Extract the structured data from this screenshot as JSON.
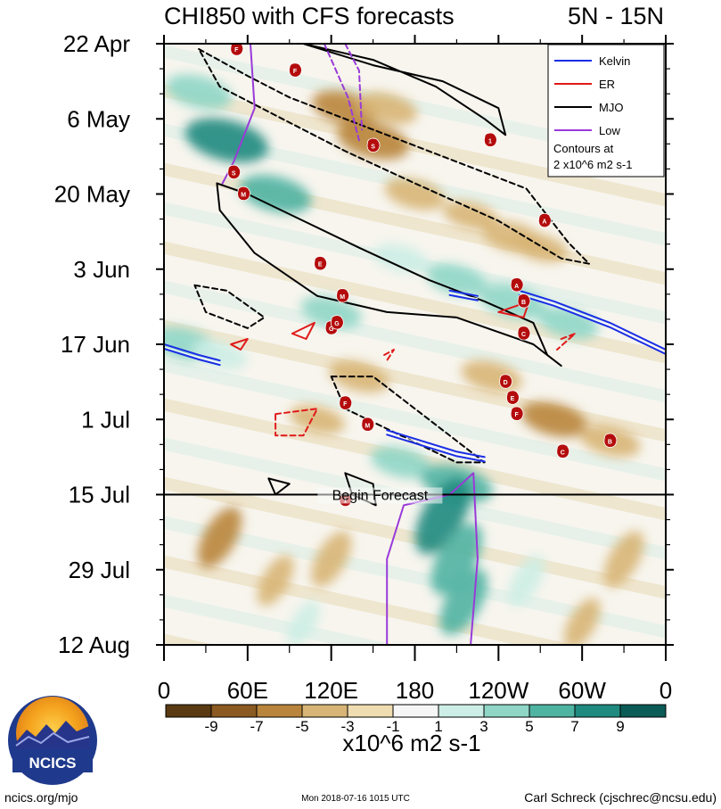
{
  "chart_data": {
    "type": "heatmap",
    "title_left": "CHI850 with CFS forecasts",
    "title_right": "5N - 15N",
    "variable": "CHI850 anomaly (Hovmoller, time vs longitude)",
    "x_tick_labels": [
      "0",
      "60E",
      "120E",
      "180",
      "120W",
      "60W",
      "0"
    ],
    "x_range_deg_east": [
      0,
      360
    ],
    "y_tick_labels": [
      "22 Apr",
      "6 May",
      "20 May",
      "3 Jun",
      "17 Jun",
      "1 Jul",
      "15 Jul",
      "29 Jul",
      "12 Aug"
    ],
    "y_range_days_since_22_Apr": [
      0,
      112
    ],
    "forecast_start_label": "Begin Forecast",
    "forecast_start_day": 84,
    "colorbar": {
      "levels": [
        "-9",
        "-7",
        "-5",
        "-3",
        "-1",
        "1",
        "3",
        "5",
        "7",
        "9"
      ],
      "units": "x10^6 m2 s-1",
      "colors": [
        "#5a3a12",
        "#8b5a20",
        "#b9853c",
        "#d8b576",
        "#efdcb0",
        "#f6f6f6",
        "#cdeee6",
        "#8fd6c6",
        "#4fb3a2",
        "#1f8a80",
        "#0b5c56"
      ]
    },
    "anomaly_blobs": [
      {
        "lon": 25,
        "day": 9,
        "value": 5
      },
      {
        "lon": 45,
        "day": 18,
        "value": 8
      },
      {
        "lon": 80,
        "day": 28,
        "value": 6
      },
      {
        "lon": 130,
        "day": 12,
        "value": -5
      },
      {
        "lon": 150,
        "day": 18,
        "value": -6
      },
      {
        "lon": 160,
        "day": 12,
        "value": -4
      },
      {
        "lon": 180,
        "day": 28,
        "value": -4
      },
      {
        "lon": 220,
        "day": 32,
        "value": -3
      },
      {
        "lon": 250,
        "day": 36,
        "value": -4
      },
      {
        "lon": 270,
        "day": 38,
        "value": -3
      },
      {
        "lon": 250,
        "day": 48,
        "value": 5
      },
      {
        "lon": 290,
        "day": 52,
        "value": 4
      },
      {
        "lon": 210,
        "day": 44,
        "value": 4
      },
      {
        "lon": 170,
        "day": 40,
        "value": 3
      },
      {
        "lon": 120,
        "day": 50,
        "value": 4
      },
      {
        "lon": 15,
        "day": 56,
        "value": 5
      },
      {
        "lon": 40,
        "day": 58,
        "value": 3
      },
      {
        "lon": 140,
        "day": 62,
        "value": -4
      },
      {
        "lon": 110,
        "day": 70,
        "value": -3
      },
      {
        "lon": 235,
        "day": 62,
        "value": -4
      },
      {
        "lon": 280,
        "day": 70,
        "value": -5
      },
      {
        "lon": 320,
        "day": 74,
        "value": -4
      },
      {
        "lon": 170,
        "day": 78,
        "value": 4
      },
      {
        "lon": 210,
        "day": 82,
        "value": 6
      },
      {
        "lon": 200,
        "day": 88,
        "value": 8
      },
      {
        "lon": 210,
        "day": 96,
        "value": 7
      },
      {
        "lon": 215,
        "day": 104,
        "value": 6
      },
      {
        "lon": 260,
        "day": 100,
        "value": 3
      },
      {
        "lon": 40,
        "day": 92,
        "value": -5
      },
      {
        "lon": 80,
        "day": 100,
        "value": -3
      },
      {
        "lon": 120,
        "day": 96,
        "value": -4
      },
      {
        "lon": 330,
        "day": 96,
        "value": -4
      },
      {
        "lon": 300,
        "day": 108,
        "value": -3
      },
      {
        "lon": 100,
        "day": 108,
        "value": 2
      }
    ],
    "legend": [
      {
        "label": "Kelvin",
        "color": "#1a2ee6"
      },
      {
        "label": "ER",
        "color": "#e01a1a"
      },
      {
        "label": "MJO",
        "color": "#000000"
      },
      {
        "label": "Low",
        "color": "#9a3ad8"
      }
    ],
    "contour_note": "Contours at\n2 x10^6 m2 s-1",
    "contour_note_lines": [
      "Contours at",
      "2 x10^6 m2 s-1"
    ],
    "contours": [
      {
        "type": "MJO",
        "sign": "positive",
        "points": [
          [
            100,
            0
          ],
          [
            150,
            4
          ],
          [
            200,
            7
          ],
          [
            240,
            12
          ],
          [
            245,
            17
          ],
          [
            230,
            14
          ],
          [
            195,
            8
          ],
          [
            150,
            3
          ],
          [
            100,
            0
          ]
        ]
      },
      {
        "type": "MJO",
        "sign": "negative",
        "points": [
          [
            25,
            1
          ],
          [
            60,
            6
          ],
          [
            90,
            10
          ],
          [
            140,
            15
          ],
          [
            200,
            21
          ],
          [
            260,
            27
          ],
          [
            290,
            37
          ],
          [
            305,
            41
          ],
          [
            285,
            40
          ],
          [
            240,
            33
          ],
          [
            180,
            26
          ],
          [
            130,
            20
          ],
          [
            85,
            14
          ],
          [
            40,
            8
          ],
          [
            25,
            1
          ]
        ]
      },
      {
        "type": "MJO",
        "sign": "positive",
        "points": [
          [
            38,
            26
          ],
          [
            60,
            28
          ],
          [
            100,
            33
          ],
          [
            140,
            38
          ],
          [
            190,
            44
          ],
          [
            230,
            48
          ],
          [
            265,
            52
          ],
          [
            275,
            58
          ],
          [
            285,
            60
          ],
          [
            265,
            56
          ],
          [
            210,
            51
          ],
          [
            160,
            50
          ],
          [
            110,
            47
          ],
          [
            65,
            39
          ],
          [
            40,
            31
          ],
          [
            38,
            26
          ]
        ]
      },
      {
        "type": "MJO",
        "sign": "negative",
        "points": [
          [
            22,
            45
          ],
          [
            45,
            46
          ],
          [
            72,
            51
          ],
          [
            60,
            53
          ],
          [
            30,
            50
          ],
          [
            22,
            45
          ]
        ]
      },
      {
        "type": "MJO",
        "sign": "negative",
        "points": [
          [
            120,
            62
          ],
          [
            150,
            62
          ],
          [
            185,
            69
          ],
          [
            215,
            75
          ],
          [
            230,
            78
          ],
          [
            210,
            78
          ],
          [
            170,
            73
          ],
          [
            130,
            68
          ],
          [
            120,
            62
          ]
        ]
      },
      {
        "type": "MJO",
        "sign": "positive",
        "points": [
          [
            75,
            81
          ],
          [
            90,
            82
          ],
          [
            80,
            84
          ],
          [
            75,
            81
          ]
        ]
      },
      {
        "type": "MJO",
        "sign": "positive",
        "points": [
          [
            130,
            80
          ],
          [
            150,
            82
          ],
          [
            152,
            86
          ],
          [
            135,
            84
          ],
          [
            130,
            80
          ]
        ]
      },
      {
        "type": "Low",
        "sign": "positive",
        "points": [
          [
            62,
            0
          ],
          [
            65,
            12
          ],
          [
            50,
            22
          ],
          [
            42,
            26
          ]
        ]
      },
      {
        "type": "Low",
        "sign": "negative",
        "points": [
          [
            115,
            0
          ],
          [
            132,
            10
          ],
          [
            140,
            18
          ]
        ]
      },
      {
        "type": "Low",
        "sign": "negative",
        "points": [
          [
            130,
            0
          ],
          [
            140,
            5
          ],
          [
            142,
            16
          ]
        ]
      },
      {
        "type": "Low",
        "sign": "positive",
        "points": [
          [
            160,
            112
          ],
          [
            160,
            96
          ],
          [
            172,
            86
          ],
          [
            205,
            84
          ],
          [
            222,
            80
          ],
          [
            225,
            96
          ],
          [
            220,
            112
          ]
        ]
      },
      {
        "type": "Kelvin",
        "sign": "positive",
        "points": [
          [
            0,
            56
          ],
          [
            25,
            58
          ],
          [
            40,
            59
          ]
        ]
      },
      {
        "type": "Kelvin",
        "sign": "positive",
        "points": [
          [
            160,
            72
          ],
          [
            210,
            76
          ],
          [
            230,
            77
          ]
        ]
      },
      {
        "type": "Kelvin",
        "sign": "positive",
        "points": [
          [
            255,
            46
          ],
          [
            280,
            48
          ],
          [
            320,
            52
          ],
          [
            360,
            57
          ]
        ]
      },
      {
        "type": "Kelvin",
        "sign": "positive",
        "points": [
          [
            205,
            46
          ],
          [
            225,
            47
          ]
        ]
      },
      {
        "type": "ER",
        "sign": "positive",
        "points": [
          [
            92,
            54
          ],
          [
            108,
            52
          ],
          [
            102,
            55
          ],
          [
            92,
            54
          ]
        ]
      },
      {
        "type": "ER",
        "sign": "positive",
        "points": [
          [
            48,
            56
          ],
          [
            60,
            55
          ],
          [
            55,
            57
          ],
          [
            48,
            56
          ]
        ]
      },
      {
        "type": "ER",
        "sign": "positive",
        "points": [
          [
            240,
            50
          ],
          [
            262,
            48
          ],
          [
            258,
            51
          ],
          [
            240,
            50
          ]
        ]
      },
      {
        "type": "ER",
        "sign": "negative",
        "points": [
          [
            80,
            69
          ],
          [
            110,
            68
          ],
          [
            100,
            73
          ],
          [
            80,
            73
          ],
          [
            80,
            69
          ]
        ]
      },
      {
        "type": "ER",
        "sign": "negative",
        "points": [
          [
            285,
            55
          ],
          [
            295,
            54
          ],
          [
            282,
            57
          ]
        ]
      },
      {
        "type": "ER",
        "sign": "negative",
        "points": [
          [
            158,
            58
          ],
          [
            165,
            57
          ],
          [
            160,
            59
          ]
        ]
      }
    ],
    "storms": [
      {
        "label": "F",
        "lon": 52,
        "day": 1
      },
      {
        "label": "F",
        "lon": 94,
        "day": 5
      },
      {
        "label": "S",
        "lon": 50,
        "day": 24
      },
      {
        "label": "M",
        "lon": 57,
        "day": 28
      },
      {
        "label": "E",
        "lon": 112,
        "day": 41
      },
      {
        "label": "M",
        "lon": 128,
        "day": 47
      },
      {
        "label": "G",
        "lon": 120,
        "day": 53
      },
      {
        "label": "G",
        "lon": 124,
        "day": 52
      },
      {
        "label": "S",
        "lon": 150,
        "day": 19
      },
      {
        "label": "1",
        "lon": 234,
        "day": 18
      },
      {
        "label": "A",
        "lon": 273,
        "day": 33
      },
      {
        "label": "A",
        "lon": 253,
        "day": 45
      },
      {
        "label": "B",
        "lon": 258,
        "day": 48
      },
      {
        "label": "C",
        "lon": 258,
        "day": 54
      },
      {
        "label": "D",
        "lon": 245,
        "day": 63
      },
      {
        "label": "E",
        "lon": 250,
        "day": 66
      },
      {
        "label": "F",
        "lon": 253,
        "day": 69
      },
      {
        "label": "F",
        "lon": 130,
        "day": 67
      },
      {
        "label": "M",
        "lon": 146,
        "day": 71
      },
      {
        "label": "C",
        "lon": 286,
        "day": 76
      },
      {
        "label": "B",
        "lon": 320,
        "day": 74
      },
      {
        "label": "1",
        "lon": 130,
        "day": 85
      }
    ]
  },
  "footer": {
    "logo_text": "NCICS",
    "left": "ncics.org/mjo",
    "center": "Mon 2018-07-16 1015 UTC",
    "right": "Carl Schreck (cjschrec@ncsu.edu)"
  }
}
